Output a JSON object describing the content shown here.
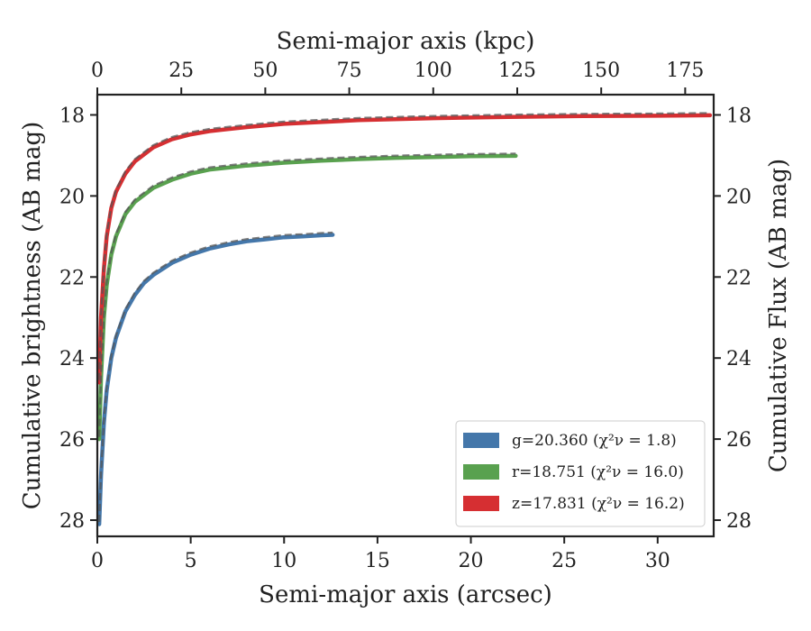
{
  "chart_data": {
    "type": "line",
    "xlabel": "Semi-major axis (arcsec)",
    "xlabel_top": "Semi-major axis (kpc)",
    "ylabel": "Cumulative brightness (AB mag)",
    "ylabel_right": "Cumulative Flux (AB mag)",
    "xlim": [
      0,
      33
    ],
    "ylim": [
      28.4,
      17.5
    ],
    "y_inverted": true,
    "x_ticks": [
      0,
      5,
      10,
      15,
      20,
      25,
      30
    ],
    "x_top_ticks": [
      0,
      25,
      50,
      75,
      100,
      125,
      150,
      175
    ],
    "x_top_scale_kpc_per_arcsec": 5.56,
    "y_ticks": [
      18,
      20,
      22,
      24,
      26,
      28
    ],
    "grid": false,
    "legend_position": "lower-right",
    "series": [
      {
        "name": "g=20.360 (χ²ν = 1.8)",
        "band": "g",
        "color": "#4477aa",
        "x": [
          0.1,
          0.2,
          0.35,
          0.5,
          0.75,
          1.0,
          1.5,
          2.0,
          2.5,
          3.0,
          4.0,
          5.0,
          6.0,
          7.0,
          8.0,
          9.0,
          10.0,
          11.0,
          12.0,
          12.6
        ],
        "y": [
          28.1,
          26.9,
          25.6,
          24.8,
          24.0,
          23.5,
          22.85,
          22.45,
          22.15,
          21.95,
          21.65,
          21.45,
          21.3,
          21.2,
          21.12,
          21.07,
          21.02,
          21.0,
          20.97,
          20.96
        ]
      },
      {
        "name": "r=18.751 (χ²ν = 16.0)",
        "band": "r",
        "color": "#59a14f",
        "x": [
          0.1,
          0.2,
          0.35,
          0.5,
          0.75,
          1.0,
          1.5,
          2.0,
          3.0,
          4.0,
          5.0,
          6.0,
          8.0,
          10.0,
          12.0,
          14.0,
          16.0,
          18.0,
          20.0,
          22.4
        ],
        "y": [
          26.0,
          24.5,
          23.0,
          22.2,
          21.45,
          21.0,
          20.45,
          20.15,
          19.8,
          19.6,
          19.45,
          19.35,
          19.25,
          19.18,
          19.13,
          19.09,
          19.06,
          19.04,
          19.02,
          19.01
        ]
      },
      {
        "name": "z=17.831 (χ²ν = 16.2)",
        "band": "z",
        "color": "#d62f32",
        "x": [
          0.1,
          0.2,
          0.35,
          0.5,
          0.75,
          1.0,
          1.5,
          2.0,
          3.0,
          4.0,
          5.0,
          6.0,
          8.0,
          10.0,
          14.0,
          18.0,
          22.0,
          26.0,
          30.0,
          32.8
        ],
        "y": [
          24.6,
          23.0,
          21.8,
          21.0,
          20.3,
          19.9,
          19.45,
          19.15,
          18.8,
          18.6,
          18.48,
          18.4,
          18.3,
          18.22,
          18.13,
          18.08,
          18.05,
          18.03,
          18.02,
          18.01
        ]
      }
    ]
  }
}
